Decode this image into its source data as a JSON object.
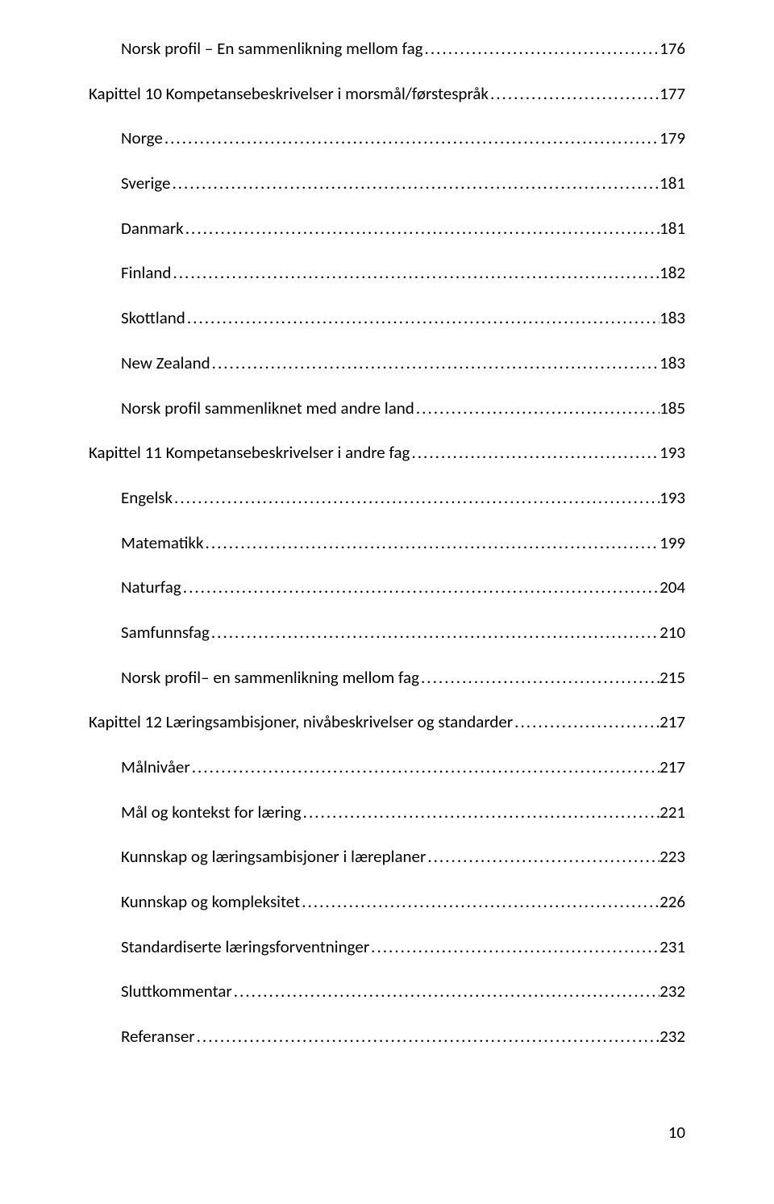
{
  "toc": [
    {
      "title": "Norsk profil – En sammenlikning mellom fag",
      "page": "176",
      "level": 1
    },
    {
      "title": "Kapittel 10 Kompetansebeskrivelser i morsmål/førstespråk",
      "page": "177",
      "level": 0
    },
    {
      "title": "Norge",
      "page": "179",
      "level": 1
    },
    {
      "title": "Sverige",
      "page": "181",
      "level": 1
    },
    {
      "title": "Danmark",
      "page": "181",
      "level": 1
    },
    {
      "title": "Finland",
      "page": "182",
      "level": 1
    },
    {
      "title": "Skottland",
      "page": "183",
      "level": 1
    },
    {
      "title": "New Zealand",
      "page": "183",
      "level": 1
    },
    {
      "title": "Norsk profil sammenliknet med andre land",
      "page": "185",
      "level": 1
    },
    {
      "title": "Kapittel 11 Kompetansebeskrivelser i andre fag",
      "page": "193",
      "level": 0
    },
    {
      "title": "Engelsk",
      "page": "193",
      "level": 1
    },
    {
      "title": "Matematikk",
      "page": "199",
      "level": 1
    },
    {
      "title": "Naturfag",
      "page": "204",
      "level": 1
    },
    {
      "title": "Samfunnsfag",
      "page": "210",
      "level": 1
    },
    {
      "title": "Norsk profil– en sammenlikning mellom fag",
      "page": "215",
      "level": 1
    },
    {
      "title": "Kapittel 12 Læringsambisjoner, nivåbeskrivelser og standarder",
      "page": "217",
      "level": 0
    },
    {
      "title": "Målnivåer",
      "page": "217",
      "level": 1
    },
    {
      "title": "Mål og kontekst for læring",
      "page": "221",
      "level": 1
    },
    {
      "title": "Kunnskap og læringsambisjoner i læreplaner",
      "page": "223",
      "level": 1
    },
    {
      "title": "Kunnskap og kompleksitet",
      "page": "226",
      "level": 1
    },
    {
      "title": "Standardiserte læringsforventninger",
      "page": "231",
      "level": 1
    },
    {
      "title": "Sluttkommentar",
      "page": "232",
      "level": 1
    },
    {
      "title": "Referanser",
      "page": "232",
      "level": 1
    }
  ],
  "page_number": "10"
}
